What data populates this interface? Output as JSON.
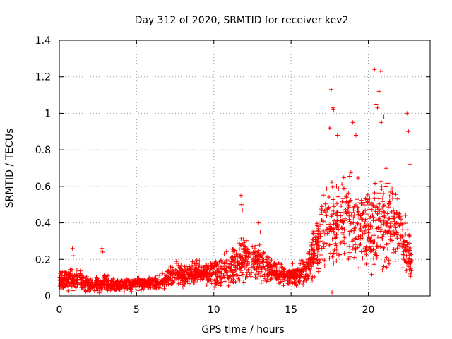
{
  "chart_data": {
    "type": "scatter",
    "title": "Day 312 of 2020, SRMTID for receiver kev2",
    "xlabel": "GPS time / hours",
    "ylabel": "SRMTID / TECUs",
    "xlim": [
      0,
      24
    ],
    "ylim": [
      0,
      1.4
    ],
    "xticks": [
      0,
      5,
      10,
      15,
      20
    ],
    "xtick_labels": [
      "0",
      "5",
      "10",
      "15",
      "20"
    ],
    "yticks": [
      0,
      0.2,
      0.4,
      0.6,
      0.8,
      1.0,
      1.2,
      1.4
    ],
    "ytick_labels": [
      "0",
      "0.2",
      "0.4",
      "0.6",
      "0.8",
      "1",
      "1.2",
      "1.4"
    ],
    "grid": true,
    "marker": "+",
    "series": [
      {
        "name": "kev2",
        "color": "#ff0000",
        "trend": {
          "x": [
            0,
            0.5,
            1,
            1.5,
            2,
            2.5,
            3,
            3.5,
            4,
            4.5,
            5,
            5.5,
            6,
            6.5,
            7,
            7.5,
            8,
            8.5,
            9,
            9.5,
            10,
            10.5,
            11,
            11.5,
            12,
            12.5,
            13,
            13.5,
            14,
            14.5,
            15,
            15.5,
            16,
            16.5,
            17,
            17.5,
            18,
            18.5,
            19,
            19.5,
            20,
            20.5,
            21,
            21.5,
            22,
            22.5,
            22.8
          ],
          "center": [
            0.08,
            0.09,
            0.1,
            0.08,
            0.06,
            0.06,
            0.07,
            0.06,
            0.06,
            0.06,
            0.07,
            0.07,
            0.07,
            0.07,
            0.1,
            0.13,
            0.11,
            0.12,
            0.13,
            0.12,
            0.12,
            0.13,
            0.16,
            0.18,
            0.2,
            0.19,
            0.17,
            0.15,
            0.13,
            0.12,
            0.11,
            0.12,
            0.14,
            0.25,
            0.35,
            0.38,
            0.42,
            0.45,
            0.42,
            0.38,
            0.35,
            0.4,
            0.42,
            0.4,
            0.35,
            0.25,
            0.2
          ],
          "spread": [
            0.04,
            0.05,
            0.05,
            0.04,
            0.03,
            0.03,
            0.04,
            0.03,
            0.03,
            0.03,
            0.03,
            0.03,
            0.03,
            0.03,
            0.05,
            0.05,
            0.05,
            0.05,
            0.05,
            0.05,
            0.06,
            0.07,
            0.08,
            0.1,
            0.1,
            0.09,
            0.08,
            0.07,
            0.06,
            0.05,
            0.05,
            0.05,
            0.06,
            0.12,
            0.18,
            0.2,
            0.22,
            0.22,
            0.2,
            0.2,
            0.2,
            0.22,
            0.22,
            0.2,
            0.16,
            0.12,
            0.08
          ]
        },
        "outliers": {
          "x": [
            0.85,
            0.9,
            2.75,
            2.8,
            11.75,
            11.8,
            11.85,
            12.9,
            13.0,
            17.6,
            17.7,
            17.75,
            17.5,
            18.0,
            19.0,
            19.2,
            20.4,
            20.5,
            20.6,
            20.7,
            20.8,
            20.85,
            21.0,
            22.5,
            22.6,
            22.7,
            17.65
          ],
          "y": [
            0.26,
            0.22,
            0.26,
            0.24,
            0.55,
            0.5,
            0.47,
            0.4,
            0.35,
            1.13,
            1.03,
            1.02,
            0.92,
            0.88,
            0.95,
            0.88,
            1.24,
            1.05,
            1.03,
            1.12,
            1.23,
            0.95,
            0.98,
            1.0,
            0.9,
            0.72,
            0.02
          ]
        }
      }
    ]
  }
}
